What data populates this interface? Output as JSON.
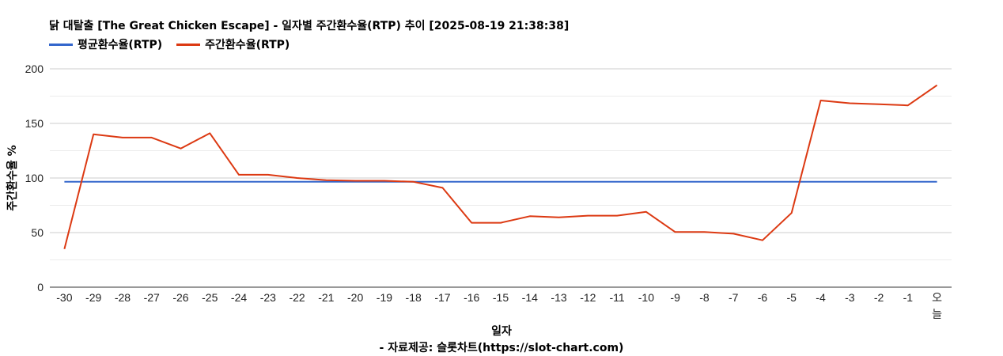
{
  "chart_data": {
    "type": "line",
    "title": "닭 대탈출 [The Great Chicken Escape] - 일자별 주간환수율(RTP) 추이 [2025-08-19 21:38:38]",
    "xlabel": "일자",
    "ylabel": "주간환수율 %",
    "source": "- 자료제공: 슬롯차트(https://slot-chart.com)",
    "legend_position": "top-left",
    "grid": true,
    "ylim": [
      0,
      200
    ],
    "yticks": [
      0,
      50,
      100,
      150,
      200
    ],
    "categories": [
      "-30",
      "-29",
      "-28",
      "-27",
      "-26",
      "-25",
      "-24",
      "-23",
      "-22",
      "-21",
      "-20",
      "-19",
      "-18",
      "-17",
      "-16",
      "-15",
      "-14",
      "-13",
      "-12",
      "-11",
      "-10",
      "-9",
      "-8",
      "-7",
      "-6",
      "-5",
      "-4",
      "-3",
      "-2",
      "-1",
      "오늘"
    ],
    "series": [
      {
        "name": "평균환수율(RTP)",
        "color": "#3366cc",
        "values": [
          96.5,
          96.5,
          96.5,
          96.5,
          96.5,
          96.5,
          96.5,
          96.5,
          96.5,
          96.5,
          96.5,
          96.5,
          96.5,
          96.5,
          96.5,
          96.5,
          96.5,
          96.5,
          96.5,
          96.5,
          96.5,
          96.5,
          96.5,
          96.5,
          96.5,
          96.5,
          96.5,
          96.5,
          96.5,
          96.5,
          96.5
        ]
      },
      {
        "name": "주간환수율(RTP)",
        "color": "#dc3912",
        "values": [
          35,
          140,
          137,
          137,
          127,
          141,
          103,
          103,
          100,
          98,
          97.5,
          97.5,
          96.5,
          91,
          59,
          59,
          65,
          64,
          65.5,
          65.5,
          69,
          50.5,
          50.5,
          49,
          43,
          68,
          171,
          168.5,
          167.5,
          166.5,
          185
        ]
      }
    ]
  }
}
